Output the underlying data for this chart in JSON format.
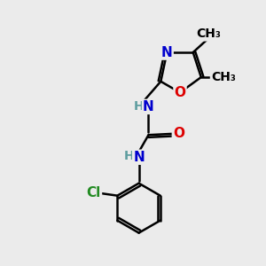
{
  "background_color": "#ebebeb",
  "atom_colors": {
    "C": "#000000",
    "N": "#0000cd",
    "O": "#dd0000",
    "Cl": "#228B22",
    "H": "#5f9ea0"
  },
  "bond_color": "#000000",
  "bond_width": 1.8,
  "font_size_atoms": 11,
  "font_size_small": 10,
  "font_size_methyl": 10
}
